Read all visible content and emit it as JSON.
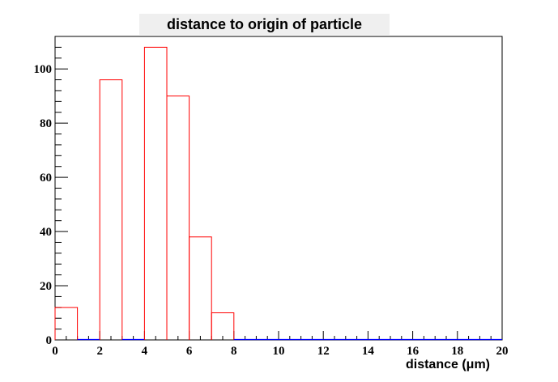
{
  "chart_data": {
    "type": "bar",
    "histogram": true,
    "title": "distance to origin of particle",
    "xlabel": "distance (μm)",
    "ylabel": "",
    "xlim": [
      0,
      20
    ],
    "ylim": [
      0,
      112
    ],
    "x_ticks": [
      0,
      2,
      4,
      6,
      8,
      10,
      12,
      14,
      16,
      18,
      20
    ],
    "y_ticks": [
      0,
      20,
      40,
      60,
      80,
      100
    ],
    "bin_edges": [
      0,
      1,
      2,
      3,
      4,
      5,
      6,
      7,
      8,
      9,
      10,
      11,
      12,
      13,
      14,
      15,
      16,
      17,
      18,
      19,
      20
    ],
    "values": [
      12,
      0,
      96,
      0,
      108,
      90,
      38,
      10,
      0,
      0,
      0,
      0,
      0,
      0,
      0,
      0,
      0,
      0,
      0,
      0
    ],
    "line_color": "#ff0000",
    "axis_color": "#000000",
    "baseline_color": "#0000ff",
    "grid": false,
    "legend": "none"
  }
}
